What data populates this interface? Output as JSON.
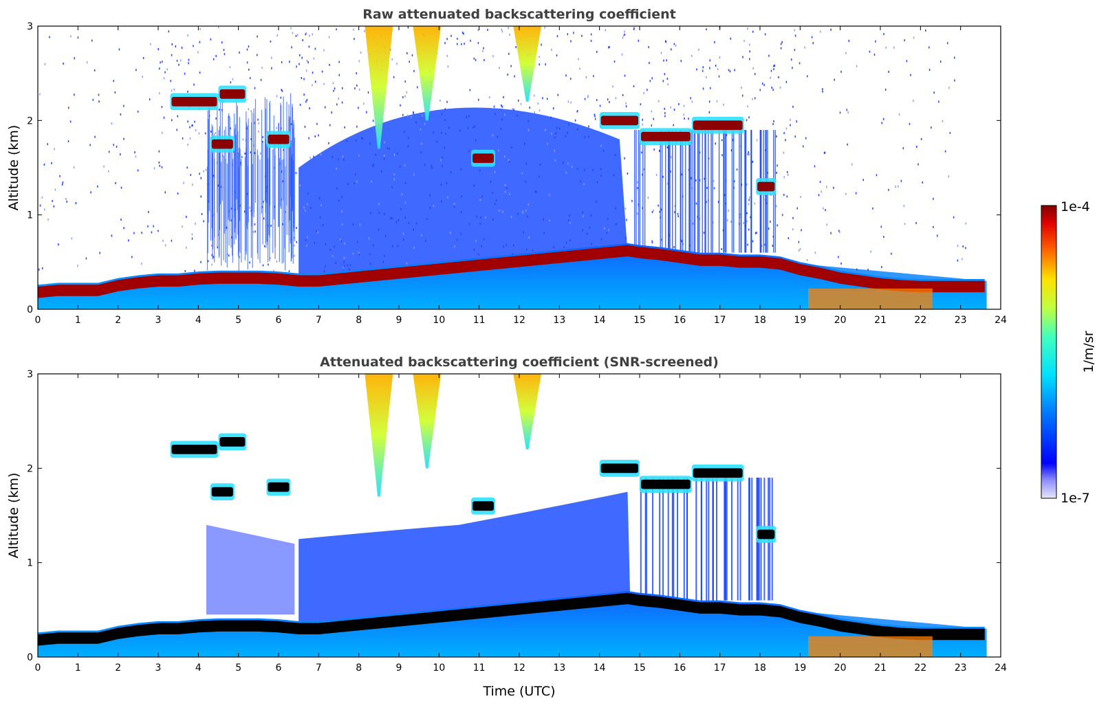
{
  "chart_data": [
    {
      "type": "heatmap",
      "title": "Raw attenuated backscattering coefficient",
      "xlabel": "",
      "ylabel": "Altitude (km)",
      "xlim": [
        0,
        24
      ],
      "ylim": [
        0,
        3
      ],
      "x_ticks": [
        0,
        1,
        2,
        3,
        4,
        5,
        6,
        7,
        8,
        9,
        10,
        11,
        12,
        13,
        14,
        15,
        16,
        17,
        18,
        19,
        20,
        21,
        22,
        23,
        24
      ],
      "y_ticks": [
        0,
        1,
        2,
        3
      ],
      "grid": false,
      "screened": false,
      "boundary_layer_top_km": {
        "x": [
          0,
          0.5,
          1,
          1.5,
          2,
          2.5,
          3,
          3.5,
          4,
          4.5,
          5,
          5.5,
          6,
          6.5,
          7,
          14.7,
          15,
          15.5,
          16,
          16.5,
          17,
          17.5,
          18,
          18.5,
          19,
          19.5,
          20,
          20.5,
          21,
          21.5,
          22,
          22.5,
          23,
          23.65
        ],
        "y": [
          0.18,
          0.2,
          0.2,
          0.2,
          0.25,
          0.28,
          0.3,
          0.3,
          0.32,
          0.33,
          0.33,
          0.33,
          0.32,
          0.3,
          0.3,
          0.62,
          0.6,
          0.58,
          0.55,
          0.52,
          0.52,
          0.5,
          0.5,
          0.48,
          0.42,
          0.38,
          0.33,
          0.3,
          0.27,
          0.25,
          0.24,
          0.24,
          0.24,
          0.24
        ]
      },
      "cloud_layers": [
        {
          "x0": 3.3,
          "x1": 4.5,
          "alt_km": 2.2
        },
        {
          "x0": 4.5,
          "x1": 5.2,
          "alt_km": 2.28
        },
        {
          "x0": 5.7,
          "x1": 6.3,
          "alt_km": 1.8
        },
        {
          "x0": 4.3,
          "x1": 4.9,
          "alt_km": 1.75
        },
        {
          "x0": 10.8,
          "x1": 11.4,
          "alt_km": 1.6
        },
        {
          "x0": 14.0,
          "x1": 15.0,
          "alt_km": 2.0
        },
        {
          "x0": 15.0,
          "x1": 16.3,
          "alt_km": 1.83
        },
        {
          "x0": 16.3,
          "x1": 17.6,
          "alt_km": 1.95
        },
        {
          "x0": 17.9,
          "x1": 18.4,
          "alt_km": 1.3
        }
      ],
      "precipitation_shafts": [
        {
          "x": 8.5,
          "top_km": 3.0,
          "bottom_km": 1.7
        },
        {
          "x": 9.7,
          "top_km": 3.0,
          "bottom_km": 2.0
        },
        {
          "x": 12.2,
          "top_km": 3.0,
          "bottom_km": 2.2
        }
      ]
    },
    {
      "type": "heatmap",
      "title": "Attenuated backscattering coefficient (SNR-screened)",
      "xlabel": "Time (UTC)",
      "ylabel": "Altitude (km)",
      "xlim": [
        0,
        24
      ],
      "ylim": [
        0,
        3
      ],
      "x_ticks": [
        0,
        1,
        2,
        3,
        4,
        5,
        6,
        7,
        8,
        9,
        10,
        11,
        12,
        13,
        14,
        15,
        16,
        17,
        18,
        19,
        20,
        21,
        22,
        23,
        24
      ],
      "y_ticks": [
        0,
        1,
        2,
        3
      ],
      "grid": false,
      "screened": true
    }
  ],
  "colorbar": {
    "label": "1/m/sr",
    "max_label": "1e-4",
    "min_label": "1e-7",
    "vmin": 1e-07,
    "vmax": 0.0001,
    "scale": "log",
    "colormap": "jet",
    "placement": "right"
  },
  "colors": {
    "background": "#ffffff",
    "title": "#404040",
    "strong_signal_mask": "#000000"
  }
}
